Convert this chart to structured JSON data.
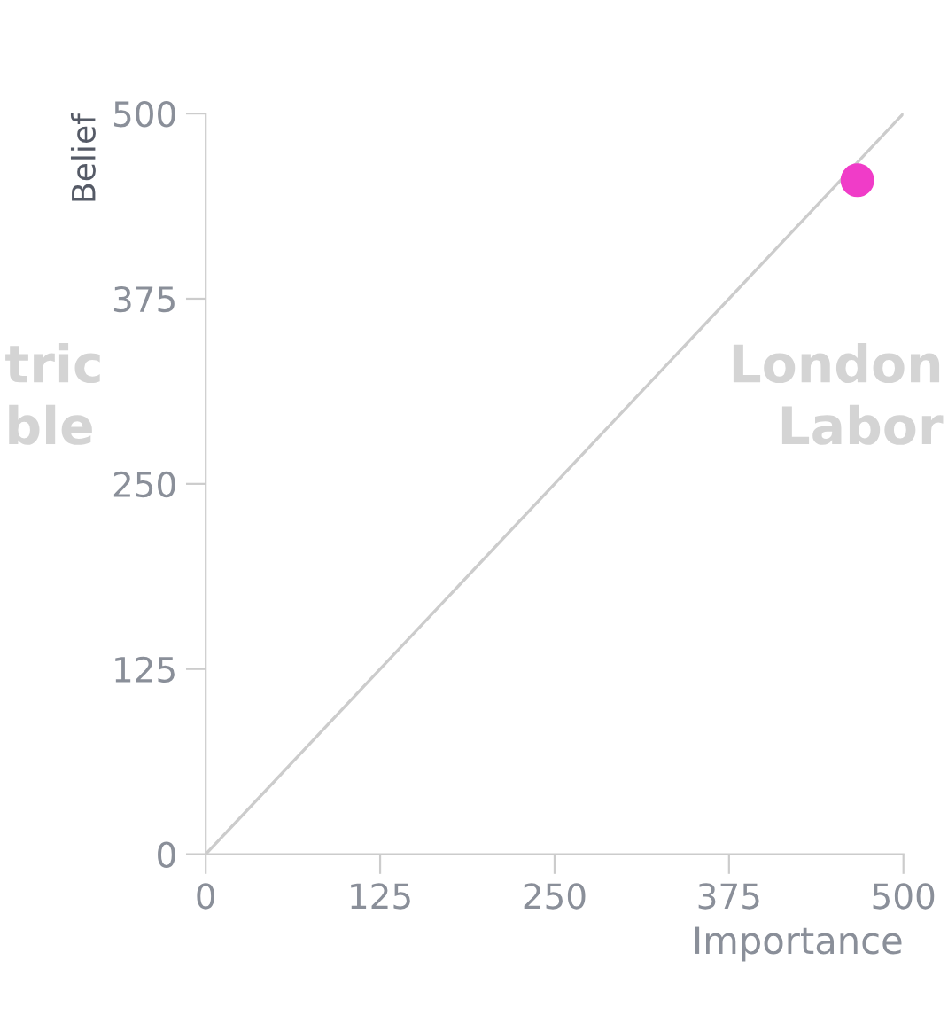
{
  "chart_data": {
    "type": "scatter",
    "xlabel": "Importance",
    "ylabel": "Belief",
    "x": [
      467
    ],
    "series": [
      {
        "color": "#f03cc8",
        "values": [
          455
        ],
        "marker": "circle"
      },
      {
        "type": "line",
        "color": "#cccccc",
        "x": [
          0,
          500
        ],
        "values": [
          0,
          500
        ]
      }
    ],
    "xlim": [
      0,
      500
    ],
    "ylim": [
      0,
      500
    ],
    "xticks": [
      0,
      125,
      250,
      375,
      500
    ],
    "yticks": [
      0,
      125,
      250,
      375,
      500
    ],
    "grid": false,
    "legend": false,
    "annotations": [
      "tric\nble",
      "London\nLabor"
    ]
  }
}
